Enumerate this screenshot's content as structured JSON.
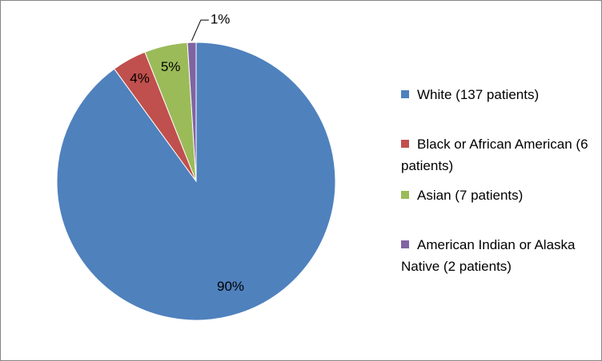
{
  "chart_data": {
    "type": "pie",
    "categories": [
      "White (137 patients)",
      "Black or African American (6 patients)",
      "Asian (7 patients)",
      "American Indian or Alaska Native (2 patients)"
    ],
    "values": [
      90,
      4,
      5,
      1
    ],
    "value_labels": [
      "90%",
      "4%",
      "5%",
      "1%"
    ],
    "colors": [
      "#4f81bd",
      "#c0504d",
      "#9bbb59",
      "#8064a2"
    ],
    "legend": "right"
  }
}
